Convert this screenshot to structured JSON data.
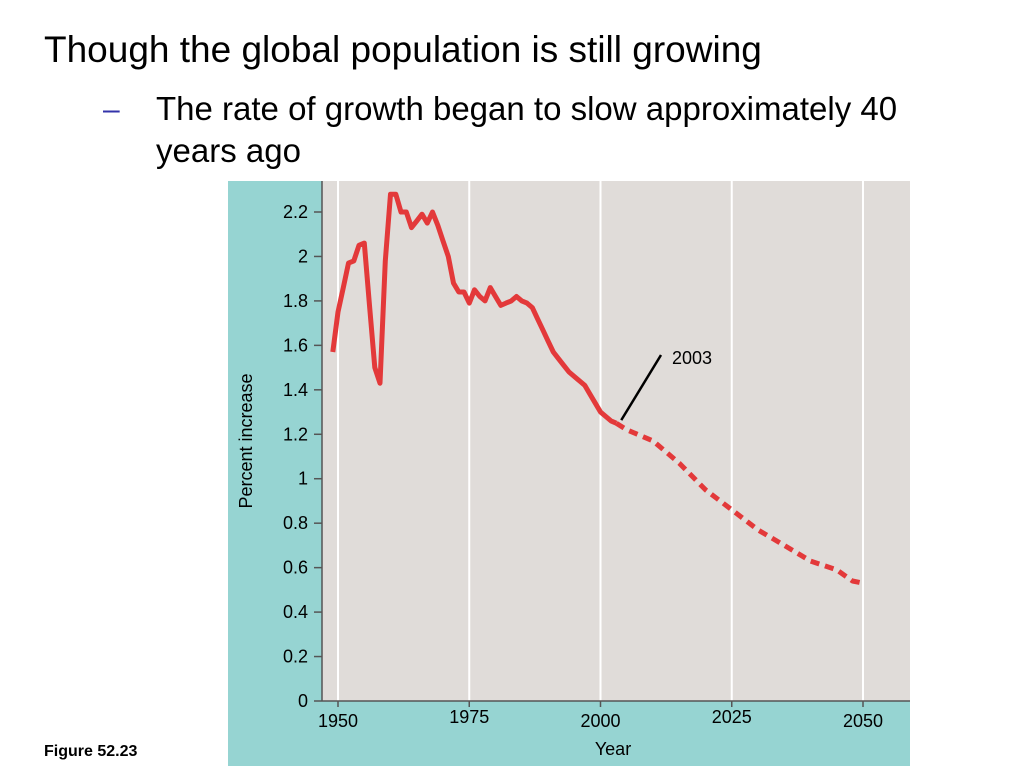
{
  "slide": {
    "title": "Though the global population is still growing",
    "bullet_dash": "–",
    "bullet_text": "The rate of growth began to slow approximately 40 years ago",
    "figure_label": "Figure 52.23"
  },
  "colors": {
    "panel_background": "#96d4d2",
    "plot_background": "#e0dcd9",
    "gridline": "#ffffff",
    "line": "#e3393a",
    "annotation": "#000000"
  },
  "chart_data": {
    "type": "line",
    "title": "",
    "xlabel": "Year",
    "ylabel": "Percent increase",
    "xlim": [
      1948,
      2058
    ],
    "ylim": [
      0,
      2.3
    ],
    "x_ticks": [
      {
        "value": 1950,
        "label": "1950"
      },
      {
        "value": 1975,
        "label": "1975"
      },
      {
        "value": 2000,
        "label": "2000"
      },
      {
        "value": 2025,
        "label": "2025"
      },
      {
        "value": 2050,
        "label": "2050"
      }
    ],
    "y_ticks": [
      {
        "value": 0,
        "label": "0"
      },
      {
        "value": 0.2,
        "label": "0.2"
      },
      {
        "value": 0.4,
        "label": "0.4"
      },
      {
        "value": 0.6,
        "label": "0.6"
      },
      {
        "value": 0.8,
        "label": "0.8"
      },
      {
        "value": 1,
        "label": "1"
      },
      {
        "value": 1.2,
        "label": "1.2"
      },
      {
        "value": 1.4,
        "label": "1.4"
      },
      {
        "value": 1.6,
        "label": "1.6"
      },
      {
        "value": 1.8,
        "label": "1.8"
      },
      {
        "value": 2,
        "label": "2"
      },
      {
        "value": 2.2,
        "label": "2.2"
      }
    ],
    "grid": true,
    "series": [
      {
        "style": "solid",
        "x": [
          1949,
          1950,
          1951,
          1952,
          1953,
          1954,
          1955,
          1956,
          1957,
          1958,
          1959,
          1960,
          1961,
          1962,
          1963,
          1964,
          1965,
          1966,
          1967,
          1968,
          1969,
          1970,
          1971,
          1972,
          1973,
          1974,
          1975,
          1976,
          1977,
          1978,
          1979,
          1980,
          1981,
          1982,
          1983,
          1984,
          1985,
          1986,
          1987,
          1988,
          1989,
          1990,
          1991,
          1992,
          1993,
          1994,
          1995,
          1996,
          1997,
          1998,
          1999,
          2000,
          2001,
          2002,
          2003
        ],
        "values": [
          1.57,
          1.75,
          1.86,
          1.97,
          1.98,
          2.05,
          2.06,
          1.78,
          1.5,
          1.43,
          1.98,
          2.28,
          2.28,
          2.2,
          2.2,
          2.13,
          2.16,
          2.19,
          2.15,
          2.2,
          2.14,
          2.07,
          2.0,
          1.88,
          1.84,
          1.84,
          1.79,
          1.85,
          1.82,
          1.8,
          1.86,
          1.82,
          1.78,
          1.79,
          1.8,
          1.82,
          1.8,
          1.79,
          1.77,
          1.72,
          1.67,
          1.62,
          1.57,
          1.54,
          1.51,
          1.48,
          1.46,
          1.44,
          1.42,
          1.38,
          1.34,
          1.3,
          1.28,
          1.26,
          1.25
        ]
      },
      {
        "style": "dashed",
        "x": [
          2003,
          2005,
          2010,
          2015,
          2020,
          2025,
          2030,
          2035,
          2040,
          2045,
          2048,
          2050
        ],
        "values": [
          1.25,
          1.22,
          1.17,
          1.07,
          0.95,
          0.86,
          0.77,
          0.7,
          0.63,
          0.59,
          0.54,
          0.53
        ]
      }
    ],
    "annotations": [
      {
        "label": "2003",
        "points_to": {
          "x": 2003,
          "y": 1.25
        }
      }
    ]
  }
}
